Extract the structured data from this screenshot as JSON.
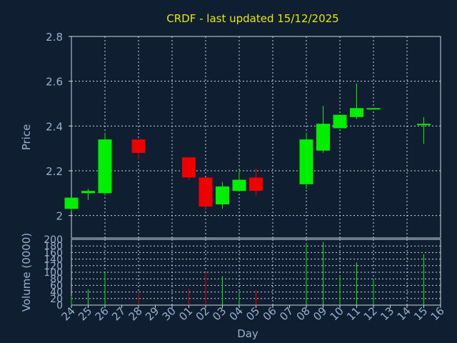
{
  "chart_data": {
    "type": "candlestick",
    "title": "CRDF - last updated 15/12/2025",
    "colors": {
      "background": "#0f1e31",
      "title": "#e8e800",
      "axis_text": "#9ab0cc",
      "grid": "#d0d8e4",
      "up": "#00ee00",
      "down": "#ee0000"
    },
    "price": {
      "ylabel": "Price",
      "ylim": [
        1.9,
        2.8
      ],
      "yticks": [
        2,
        2.2,
        2.4,
        2.6,
        2.8
      ],
      "ytick_labels": [
        "2",
        "2.2",
        "2.4",
        "2.6",
        "2.8"
      ]
    },
    "volume": {
      "ylabel": "Volume (0000)",
      "ylim": [
        0,
        200
      ],
      "yticks": [
        0,
        20,
        40,
        60,
        80,
        100,
        120,
        140,
        160,
        180,
        200
      ],
      "ytick_labels": [
        "0",
        "20",
        "40",
        "60",
        "80",
        "100",
        "120",
        "140",
        "160",
        "180",
        "200"
      ]
    },
    "xlabel": "Day",
    "x_labels": [
      "24",
      "25",
      "26",
      "27",
      "28",
      "29",
      "30",
      "01",
      "02",
      "03",
      "04",
      "05",
      "06",
      "07",
      "08",
      "09",
      "10",
      "11",
      "12",
      "13",
      "14",
      "15",
      "16"
    ],
    "candles": [
      {
        "x": "24",
        "open": 2.03,
        "high": 2.08,
        "low": 2.02,
        "close": 2.08,
        "volume": 28
      },
      {
        "x": "25",
        "open": 2.1,
        "high": 2.12,
        "low": 2.07,
        "close": 2.11,
        "volume": 48
      },
      {
        "x": "26",
        "open": 2.1,
        "high": 2.37,
        "low": 2.09,
        "close": 2.34,
        "volume": 100
      },
      {
        "x": "28",
        "open": 2.34,
        "high": 2.34,
        "low": 2.25,
        "close": 2.28,
        "volume": 40
      },
      {
        "x": "01",
        "open": 2.26,
        "high": 2.26,
        "low": 2.16,
        "close": 2.17,
        "volume": 50
      },
      {
        "x": "02",
        "open": 2.17,
        "high": 2.17,
        "low": 2.03,
        "close": 2.04,
        "volume": 100
      },
      {
        "x": "03",
        "open": 2.05,
        "high": 2.15,
        "low": 2.03,
        "close": 2.13,
        "volume": 88
      },
      {
        "x": "04",
        "open": 2.11,
        "high": 2.2,
        "low": 2.11,
        "close": 2.16,
        "volume": 40
      },
      {
        "x": "05",
        "open": 2.17,
        "high": 2.21,
        "low": 2.09,
        "close": 2.11,
        "volume": 45
      },
      {
        "x": "08",
        "open": 2.14,
        "high": 2.37,
        "low": 2.12,
        "close": 2.34,
        "volume": 190
      },
      {
        "x": "09",
        "open": 2.29,
        "high": 2.49,
        "low": 2.28,
        "close": 2.41,
        "volume": 192
      },
      {
        "x": "10",
        "open": 2.39,
        "high": 2.45,
        "low": 2.39,
        "close": 2.45,
        "volume": 90
      },
      {
        "x": "11",
        "open": 2.44,
        "high": 2.59,
        "low": 2.43,
        "close": 2.48,
        "volume": 130
      },
      {
        "x": "12",
        "open": 2.474,
        "high": 2.48,
        "low": 2.474,
        "close": 2.48,
        "volume": 80
      },
      {
        "x": "15",
        "open": 2.405,
        "high": 2.44,
        "low": 2.32,
        "close": 2.41,
        "volume": 155
      }
    ]
  }
}
